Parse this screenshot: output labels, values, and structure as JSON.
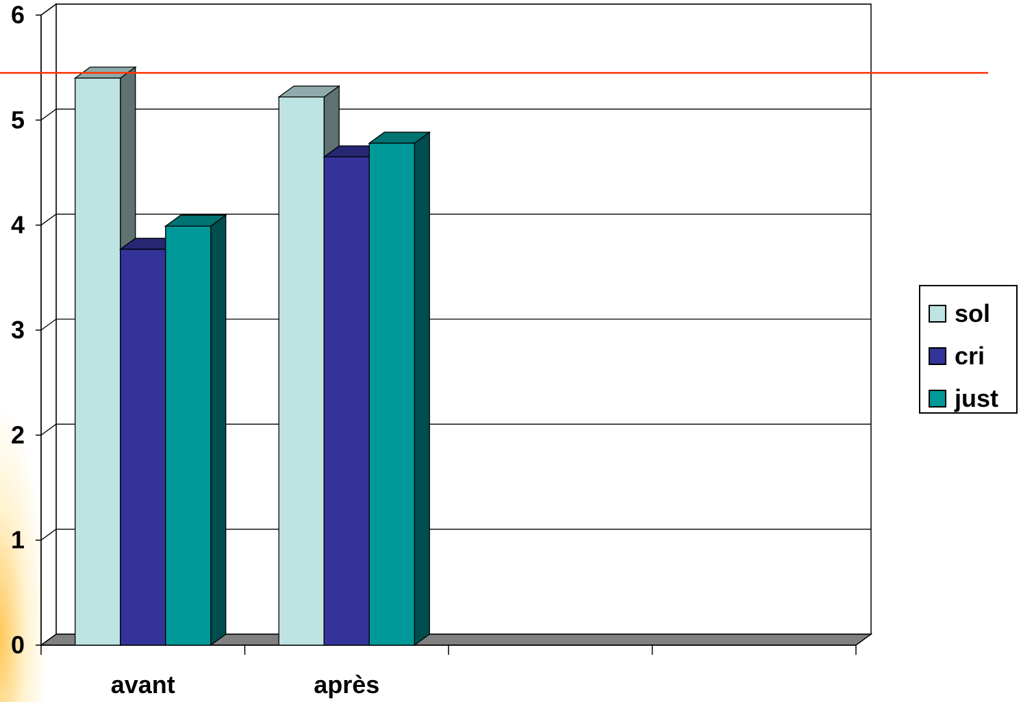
{
  "chart_data": {
    "type": "bar",
    "title": "",
    "xlabel": "",
    "ylabel": "",
    "categories": [
      "avant",
      "après"
    ],
    "series": [
      {
        "name": "sol",
        "values": [
          5.4,
          5.22
        ],
        "color": "#BEE3E3"
      },
      {
        "name": "cri",
        "values": [
          3.77,
          4.65
        ],
        "color": "#333399"
      },
      {
        "name": "just",
        "values": [
          3.99,
          4.78
        ],
        "color": "#009999"
      }
    ],
    "ylim": [
      0,
      6
    ],
    "yticks": [
      "0",
      "1",
      "2",
      "3",
      "4",
      "5",
      "6"
    ],
    "grid": true,
    "legend_position": "right",
    "reference_line": {
      "value": 5.45,
      "color": "#FF3300"
    }
  }
}
